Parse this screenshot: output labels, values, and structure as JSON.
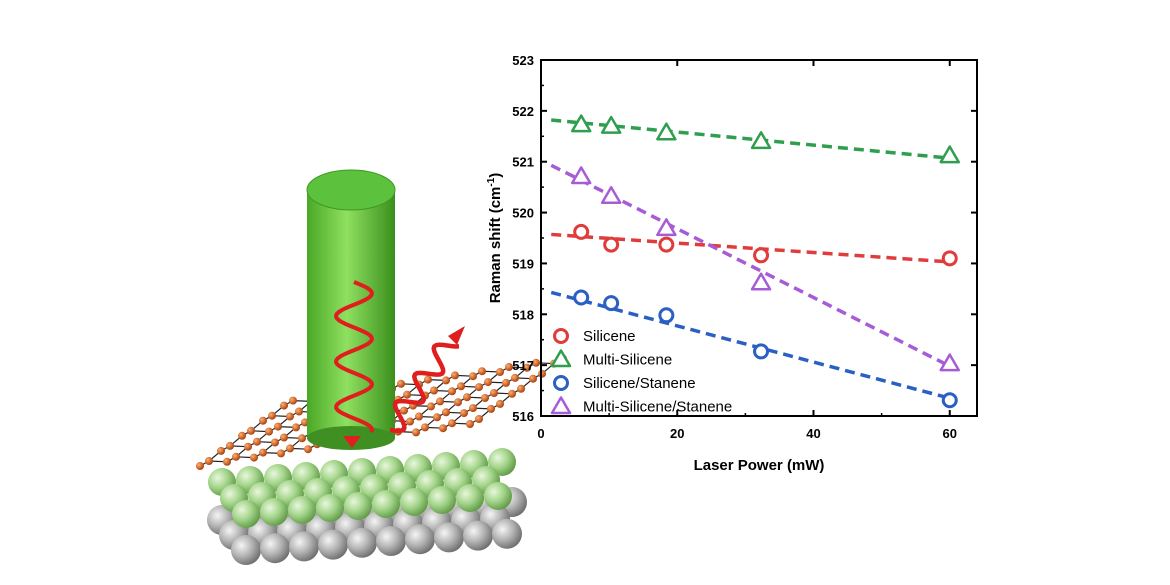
{
  "chart_data": {
    "type": "scatter",
    "xlabel": "Laser Power (mW)",
    "ylabel_main": "Raman shift (cm",
    "ylabel_sup": "-1",
    "ylabel_close": ")",
    "xlim": [
      0,
      64
    ],
    "ylim": [
      516,
      523
    ],
    "x_ticks": [
      0,
      20,
      40,
      60
    ],
    "y_ticks": [
      516,
      517,
      518,
      519,
      520,
      521,
      522,
      523
    ],
    "legend_position": "bottom-left",
    "grid": false,
    "series": [
      {
        "name": "Silicene",
        "marker": "circle",
        "color": "#e03c3c",
        "x": [
          5.9,
          10.3,
          18.4,
          32.3,
          60
        ],
        "y": [
          519.62,
          519.37,
          519.37,
          519.16,
          519.1
        ],
        "fit": {
          "x": [
            1.5,
            60
          ],
          "y": [
            519.57,
            519.03
          ]
        }
      },
      {
        "name": "Multi-Silicene",
        "marker": "triangle",
        "color": "#2f9e4e",
        "x": [
          5.9,
          10.3,
          18.4,
          32.3,
          60
        ],
        "y": [
          521.73,
          521.7,
          521.57,
          521.4,
          521.12
        ],
        "fit": {
          "x": [
            1.5,
            60
          ],
          "y": [
            521.82,
            521.07
          ]
        }
      },
      {
        "name": "Silicene/Stanene",
        "marker": "circle",
        "color": "#2a5fc4",
        "x": [
          5.9,
          10.3,
          18.4,
          32.3,
          60
        ],
        "y": [
          518.33,
          518.22,
          517.98,
          517.27,
          516.31
        ],
        "fit": {
          "x": [
            1.5,
            60
          ],
          "y": [
            518.43,
            516.35
          ]
        }
      },
      {
        "name": "Multi-Silicene/Stanene",
        "marker": "triangle",
        "color": "#a65cd6",
        "x": [
          5.9,
          10.3,
          18.4,
          32.3,
          60
        ],
        "y": [
          520.71,
          520.32,
          519.69,
          518.62,
          517.03
        ],
        "fit": {
          "x": [
            1.5,
            60
          ],
          "y": [
            520.93,
            516.98
          ]
        }
      }
    ]
  },
  "illustration": {
    "beam_color": "#5cc23d",
    "wave_color": "#e01e1e",
    "atom_color": "#cc4a10",
    "substrate_top_color": "#9fd08a",
    "substrate_bottom_color": "#a8a8a8"
  }
}
